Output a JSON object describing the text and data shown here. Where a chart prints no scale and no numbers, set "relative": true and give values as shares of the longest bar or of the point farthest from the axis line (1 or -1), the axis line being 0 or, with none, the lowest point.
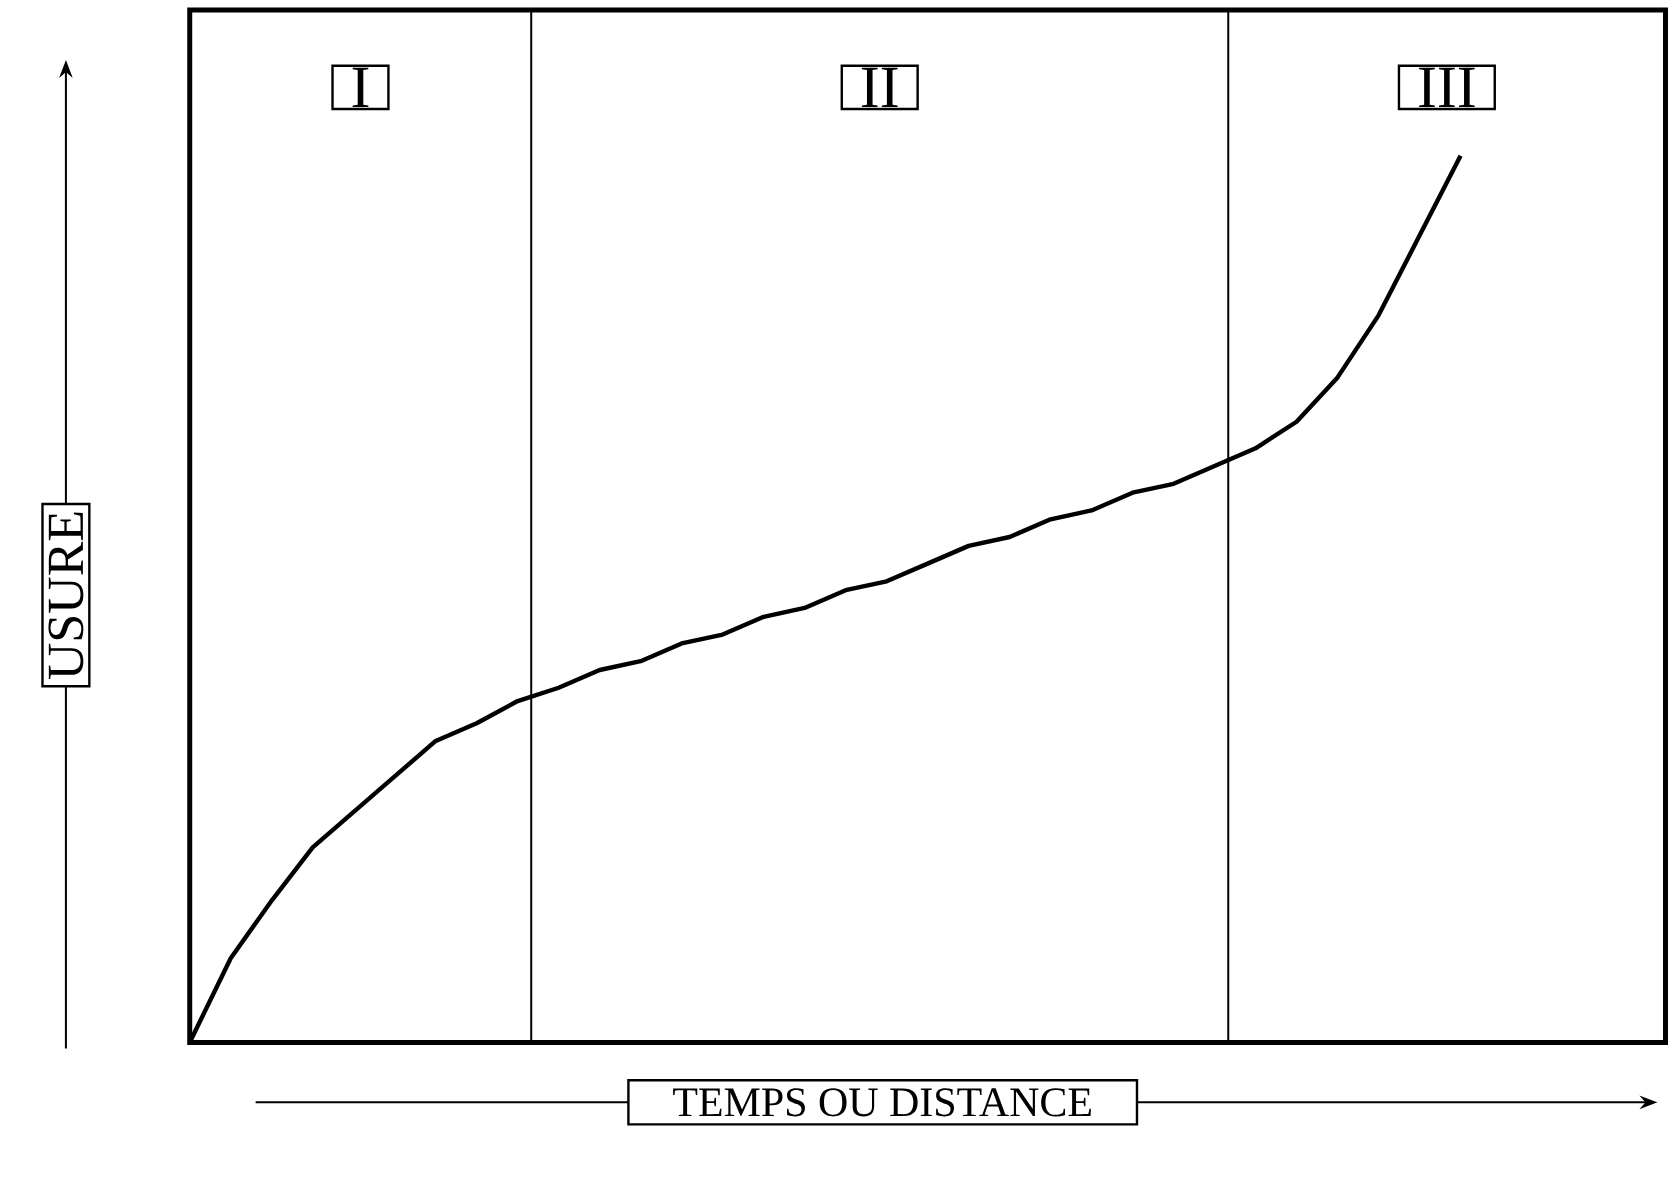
{
  "chart_data": {
    "type": "line",
    "relative": true,
    "xlabel": "TEMPS OU DISTANCE",
    "ylabel": "USURE",
    "color": "#000000",
    "categories": [
      null,
      null,
      null,
      null,
      null,
      null,
      null,
      null,
      null,
      null,
      null,
      null,
      null,
      null,
      null,
      null,
      null,
      null,
      null,
      null,
      null,
      null,
      null,
      null,
      null,
      null,
      null,
      null,
      null,
      null,
      null,
      null,
      null,
      null,
      null,
      null,
      null
    ],
    "values": [
      0,
      0.095,
      0.16,
      0.22,
      0.26,
      0.3,
      0.34,
      0.36,
      0.385,
      0.4,
      0.42,
      0.43,
      0.45,
      0.46,
      0.48,
      0.49,
      0.51,
      0.52,
      0.54,
      0.56,
      0.57,
      0.59,
      0.6,
      0.62,
      0.63,
      0.65,
      0.67,
      0.7,
      0.75,
      0.82,
      0.91,
      1,
      null,
      null,
      null,
      null,
      null
    ],
    "annotations": [
      "I",
      "II",
      "III"
    ]
  }
}
